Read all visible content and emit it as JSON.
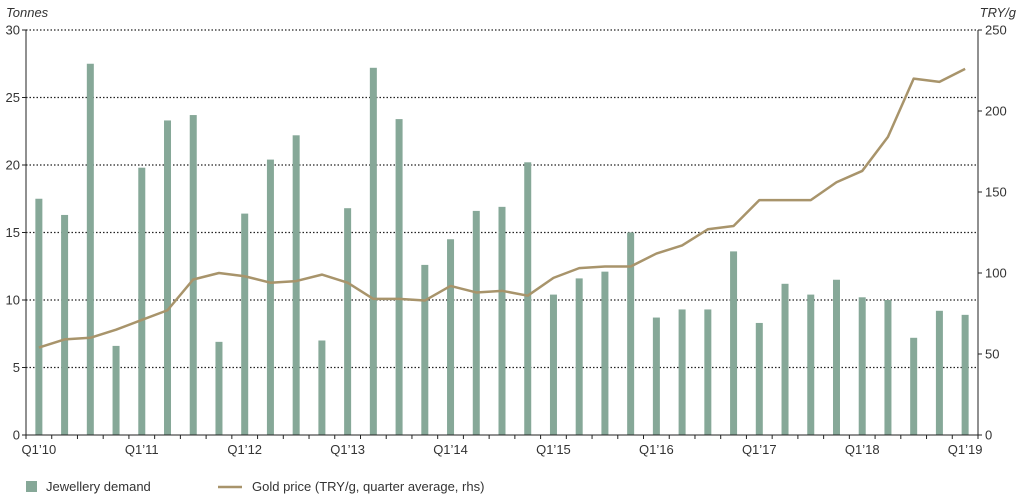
{
  "chart_data": {
    "type": "bar+line",
    "left_axis": {
      "title": "Tonnes",
      "min": 0,
      "max": 30,
      "ticks": [
        0,
        5,
        10,
        15,
        20,
        25,
        30
      ]
    },
    "right_axis": {
      "title": "TRY/g",
      "min": 0,
      "max": 250,
      "ticks": [
        0,
        50,
        100,
        150,
        200,
        250
      ]
    },
    "x_labels": [
      {
        "index": 0,
        "label": "Q1’10"
      },
      {
        "index": 4,
        "label": "Q1’11"
      },
      {
        "index": 8,
        "label": "Q1’12"
      },
      {
        "index": 12,
        "label": "Q1’13"
      },
      {
        "index": 16,
        "label": "Q1’14"
      },
      {
        "index": 20,
        "label": "Q1’15"
      },
      {
        "index": 24,
        "label": "Q1’16"
      },
      {
        "index": 28,
        "label": "Q1’17"
      },
      {
        "index": 32,
        "label": "Q1’18"
      },
      {
        "index": 36,
        "label": "Q1’19"
      }
    ],
    "grid": true,
    "series": [
      {
        "name": "Jewellery demand",
        "type": "bar",
        "axis": "left",
        "color": "#86a898",
        "values": [
          17.5,
          16.3,
          27.5,
          6.6,
          19.8,
          23.3,
          23.7,
          6.9,
          16.4,
          20.4,
          22.2,
          7.0,
          16.8,
          27.2,
          23.4,
          12.6,
          14.5,
          16.6,
          16.9,
          20.2,
          10.4,
          11.6,
          12.1,
          15.0,
          8.7,
          9.3,
          9.3,
          13.6,
          8.3,
          11.2,
          10.4,
          11.5,
          10.2,
          10.0,
          7.2,
          9.2,
          8.9
        ]
      },
      {
        "name": "Gold price (TRY/g, quarter average, rhs)",
        "type": "line",
        "axis": "right",
        "color": "#a8946b",
        "values": [
          54,
          59,
          60,
          65,
          71,
          77,
          96,
          100,
          98,
          94,
          95,
          99,
          94,
          84,
          84,
          83,
          92,
          88,
          89,
          86,
          97,
          103,
          104,
          104,
          112,
          117,
          127,
          129,
          145,
          145,
          145,
          156,
          163,
          184,
          220,
          218,
          226
        ]
      }
    ],
    "legend": {
      "placement": "bottom-left"
    }
  }
}
